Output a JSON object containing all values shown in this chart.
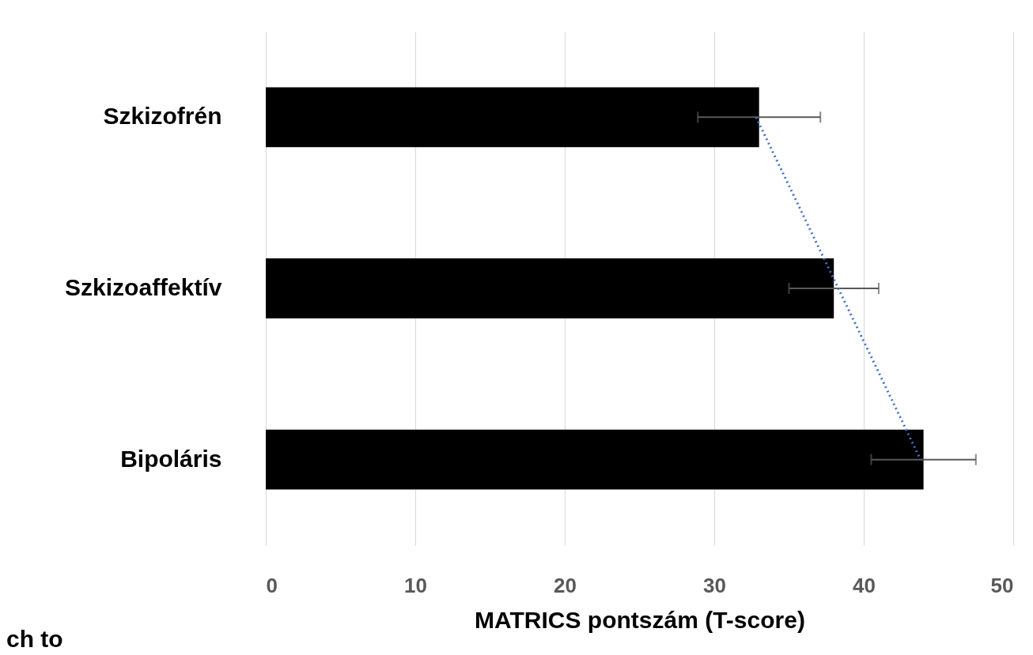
{
  "chart_data": {
    "type": "bar",
    "orientation": "horizontal",
    "xlabel": "MATRICS pontszám (T-score)",
    "categories": [
      "Szkizofrén",
      "Szkizoaffektív",
      "Bipoláris"
    ],
    "series": [
      {
        "color": "#000000",
        "values": [
          33,
          38,
          44
        ],
        "errors": [
          4.1,
          3.0,
          3.5
        ]
      },
      {
        "type": "line",
        "color": "#4472c4",
        "line_style": "dotted",
        "values": [
          32.8,
          38.3,
          43.8
        ]
      }
    ],
    "xlim": [
      0,
      50
    ],
    "xticks": [
      0,
      10,
      20,
      30,
      40,
      50
    ],
    "grid": "x",
    "annotations": [
      "ch to"
    ]
  }
}
